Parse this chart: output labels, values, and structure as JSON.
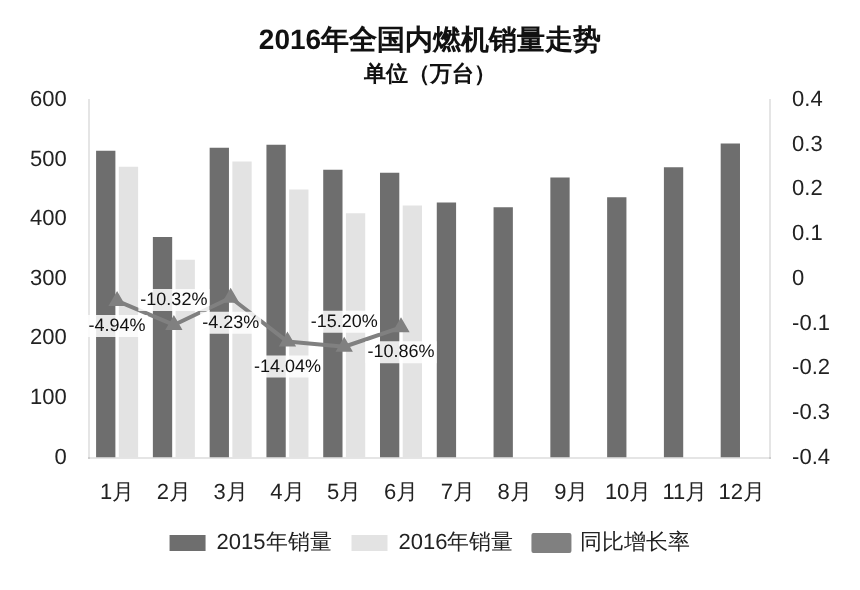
{
  "chart_data": {
    "type": "bar",
    "title": "2016年全国内燃机销量走势",
    "subtitle": "单位（万台）",
    "categories": [
      "1月",
      "2月",
      "3月",
      "4月",
      "5月",
      "6月",
      "7月",
      "8月",
      "9月",
      "10月",
      "11月",
      "12月"
    ],
    "series": [
      {
        "name": "2015年销量",
        "color": "#6e6e6e",
        "values": [
          515,
          370,
          520,
          525,
          483,
          478,
          428,
          420,
          470,
          437,
          487,
          527
        ]
      },
      {
        "name": "2016年销量",
        "color": "#e3e3e3",
        "values": [
          488,
          332,
          497,
          450,
          410,
          423,
          null,
          null,
          null,
          null,
          null,
          null
        ]
      },
      {
        "name": "同比增长率",
        "type": "line",
        "axis": "y2",
        "color": "#808080",
        "marker": "triangle",
        "values": [
          -0.0494,
          -0.1032,
          -0.0423,
          -0.1404,
          -0.152,
          -0.1086,
          null,
          null,
          null,
          null,
          null,
          null
        ],
        "value_labels": [
          "-4.94%",
          "-10.32%",
          "-4.23%",
          "-14.04%",
          "-15.20%",
          "-10.86%",
          null,
          null,
          null,
          null,
          null,
          null
        ]
      }
    ],
    "ylim": [
      0,
      600
    ],
    "yticks": [
      0,
      100,
      200,
      300,
      400,
      500,
      600
    ],
    "y2lim": [
      -0.4,
      0.4
    ],
    "y2ticks": [
      -0.4,
      -0.3,
      -0.2,
      -0.1,
      0,
      0.1,
      0.2,
      0.3,
      0.4
    ],
    "grid": false,
    "legend": "bottom"
  }
}
